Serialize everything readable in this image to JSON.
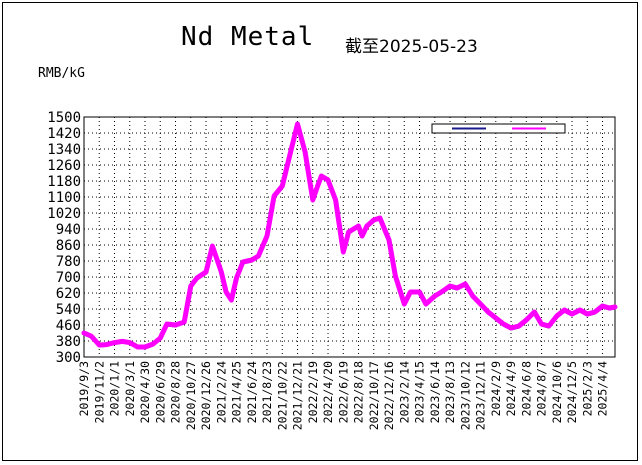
{
  "title": "Nd Metal",
  "subtitle": "截至2025-05-23",
  "unit": "RMB/kG",
  "chart_data": {
    "type": "line",
    "title": "Nd Metal",
    "subtitle": "截至2025-05-23",
    "ylabel": "RMB/kG",
    "ylim": [
      300,
      1500
    ],
    "grid": true,
    "legend_position": "top-right",
    "y_ticks": [
      "1500",
      "1420",
      "1340",
      "1260",
      "1180",
      "1100",
      "1020",
      "940",
      "860",
      "780",
      "700",
      "620",
      "540",
      "460",
      "380",
      "300"
    ],
    "x_ticks": [
      "2019/9/3",
      "2019/11/2",
      "2020/1/1",
      "2020/3/1",
      "2020/4/30",
      "2020/6/29",
      "2020/8/28",
      "2020/10/27",
      "2020/12/26",
      "2021/2/24",
      "2021/4/25",
      "2021/6/24",
      "2021/8/23",
      "2021/10/22",
      "2021/12/21",
      "2022/2/19",
      "2022/4/20",
      "2022/6/19",
      "2022/8/18",
      "2022/10/17",
      "2022/12/16",
      "2023/2/14",
      "2023/4/15",
      "2023/6/14",
      "2023/8/13",
      "2023/10/12",
      "2023/12/11",
      "2024/2/9",
      "2024/4/9",
      "2024/6/8",
      "2024/8/7",
      "2024/10/6",
      "2024/12/5",
      "2025/2/3",
      "2025/4/4"
    ],
    "series": [
      {
        "color": "#1a1a8c",
        "x": [
          "2019/9/3",
          "2019/10/1",
          "2019/11/2",
          "2019/12/1",
          "2020/1/1",
          "2020/2/1",
          "2020/3/1",
          "2020/4/1",
          "2020/4/30",
          "2020/6/1",
          "2020/6/29",
          "2020/7/25",
          "2020/8/28",
          "2020/10/1",
          "2020/10/27",
          "2020/11/20",
          "2020/12/26",
          "2021/1/20",
          "2021/2/24",
          "2021/3/15",
          "2021/4/5",
          "2021/4/25",
          "2021/5/20",
          "2021/6/24",
          "2021/7/20",
          "2021/8/23",
          "2021/9/20",
          "2021/10/22",
          "2021/11/20",
          "2021/12/21",
          "2022/1/20",
          "2022/2/19",
          "2022/3/10",
          "2022/3/25",
          "2022/4/20",
          "2022/5/20",
          "2022/6/19",
          "2022/7/10",
          "2022/8/18",
          "2022/9/1",
          "2022/9/20",
          "2022/10/17",
          "2022/11/10",
          "2022/12/16",
          "2023/1/10",
          "2023/2/14",
          "2023/3/10",
          "2023/4/15",
          "2023/5/10",
          "2023/6/14",
          "2023/7/10",
          "2023/8/13",
          "2023/9/10",
          "2023/10/12",
          "2023/11/10",
          "2023/12/11",
          "2024/1/10",
          "2024/2/9",
          "2024/3/10",
          "2024/4/9",
          "2024/5/10",
          "2024/6/8",
          "2024/7/10",
          "2024/8/7",
          "2024/9/5",
          "2024/10/6",
          "2024/11/5",
          "2024/12/5",
          "2025/1/5",
          "2025/2/3",
          "2025/3/5",
          "2025/4/4",
          "2025/5/1",
          "2025/5/23"
        ],
        "values": [
          415,
          400,
          355,
          358,
          370,
          375,
          370,
          345,
          345,
          360,
          390,
          460,
          455,
          470,
          650,
          690,
          720,
          850,
          720,
          620,
          580,
          690,
          770,
          780,
          800,
          900,
          1100,
          1150,
          1300,
          1460,
          1320,
          1080,
          1150,
          1200,
          1180,
          1080,
          820,
          920,
          950,
          900,
          950,
          980,
          990,
          880,
          700,
          560,
          620,
          620,
          560,
          600,
          620,
          650,
          640,
          660,
          600,
          560,
          520,
          490,
          460,
          440,
          450,
          480,
          520,
          460,
          450,
          500,
          530,
          510,
          530,
          510,
          520,
          550,
          540,
          545
        ]
      },
      {
        "color": "#ff00ff",
        "x": [
          "2019/9/3",
          "2019/10/1",
          "2019/11/2",
          "2019/12/1",
          "2020/1/1",
          "2020/2/1",
          "2020/3/1",
          "2020/4/1",
          "2020/4/30",
          "2020/6/1",
          "2020/6/29",
          "2020/7/25",
          "2020/8/28",
          "2020/10/1",
          "2020/10/27",
          "2020/11/20",
          "2020/12/26",
          "2021/1/20",
          "2021/2/24",
          "2021/3/15",
          "2021/4/5",
          "2021/4/25",
          "2021/5/20",
          "2021/6/24",
          "2021/7/20",
          "2021/8/23",
          "2021/9/20",
          "2021/10/22",
          "2021/11/20",
          "2021/12/21",
          "2022/1/20",
          "2022/2/19",
          "2022/3/10",
          "2022/3/25",
          "2022/4/20",
          "2022/5/20",
          "2022/6/19",
          "2022/7/10",
          "2022/8/18",
          "2022/9/1",
          "2022/9/20",
          "2022/10/17",
          "2022/11/10",
          "2022/12/16",
          "2023/1/10",
          "2023/2/14",
          "2023/3/10",
          "2023/4/15",
          "2023/5/10",
          "2023/6/14",
          "2023/7/10",
          "2023/8/13",
          "2023/9/10",
          "2023/10/12",
          "2023/11/10",
          "2023/12/11",
          "2024/1/10",
          "2024/2/9",
          "2024/3/10",
          "2024/4/9",
          "2024/5/10",
          "2024/6/8",
          "2024/7/10",
          "2024/8/7",
          "2024/9/5",
          "2024/10/6",
          "2024/11/5",
          "2024/12/5",
          "2025/1/5",
          "2025/2/3",
          "2025/3/5",
          "2025/4/4",
          "2025/5/1",
          "2025/5/23"
        ],
        "values": [
          420,
          405,
          360,
          362,
          372,
          378,
          372,
          350,
          350,
          365,
          395,
          465,
          460,
          475,
          655,
          695,
          725,
          855,
          725,
          625,
          585,
          695,
          775,
          785,
          805,
          905,
          1105,
          1155,
          1305,
          1465,
          1325,
          1085,
          1155,
          1205,
          1185,
          1085,
          825,
          925,
          955,
          905,
          955,
          985,
          995,
          885,
          705,
          565,
          625,
          625,
          565,
          605,
          625,
          655,
          645,
          665,
          605,
          565,
          525,
          495,
          465,
          445,
          455,
          485,
          525,
          465,
          455,
          505,
          535,
          515,
          535,
          515,
          525,
          555,
          545,
          550
        ]
      }
    ]
  }
}
